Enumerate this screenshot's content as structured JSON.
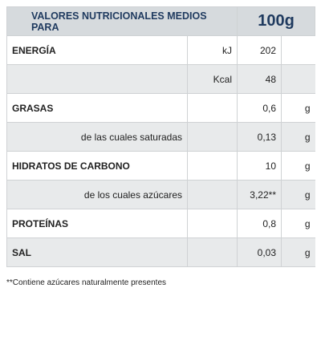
{
  "header": {
    "title": "VALORES NUTRICIONALES MEDIOS PARA",
    "amount": "100g"
  },
  "table": {
    "rows": [
      [
        "ENERGÍA",
        "kJ",
        "202"
      ],
      [
        "Kcal",
        "48"
      ],
      [
        "GRASAS",
        "0,6",
        "g"
      ],
      [
        "de las cuales saturadas",
        "0,13",
        "g"
      ],
      [
        "HIDRATOS DE CARBONO",
        "10",
        "g"
      ],
      [
        "de los cuales azúcares",
        "3,22**",
        "g"
      ],
      [
        "PROTEÍNAS",
        "0,8",
        "g"
      ],
      [
        "SAL",
        "0,03",
        "g"
      ]
    ]
  },
  "footnote": "**Contiene azúcares naturalmente presentes"
}
